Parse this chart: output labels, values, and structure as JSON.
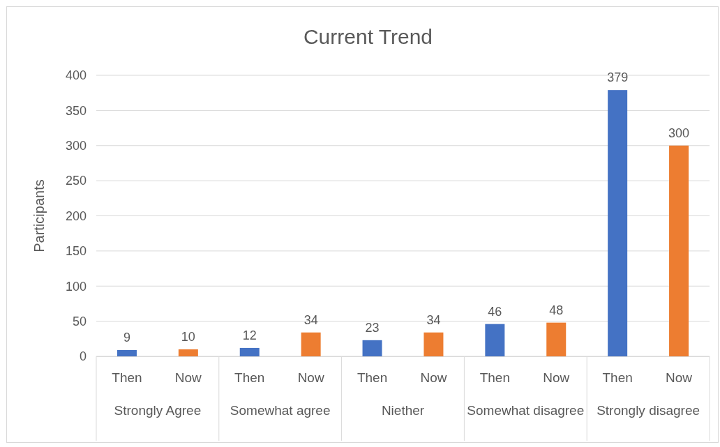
{
  "chart_data": {
    "type": "bar",
    "title": "Current Trend",
    "ylabel": "Participants",
    "categories": [
      "Strongly Agree",
      "Somewhat agree",
      "Niether",
      "Somewhat disagree",
      "Strongly disagree"
    ],
    "series": [
      {
        "name": "Then",
        "color": "#4472c4",
        "values": [
          9,
          12,
          23,
          46,
          379
        ]
      },
      {
        "name": "Now",
        "color": "#ed7d31",
        "values": [
          10,
          34,
          34,
          48,
          300
        ]
      }
    ],
    "ylim": [
      0,
      400
    ],
    "yticks": [
      0,
      50,
      100,
      150,
      200,
      250,
      300,
      350,
      400
    ],
    "grid": "y",
    "legend": false,
    "data_labels": true
  }
}
